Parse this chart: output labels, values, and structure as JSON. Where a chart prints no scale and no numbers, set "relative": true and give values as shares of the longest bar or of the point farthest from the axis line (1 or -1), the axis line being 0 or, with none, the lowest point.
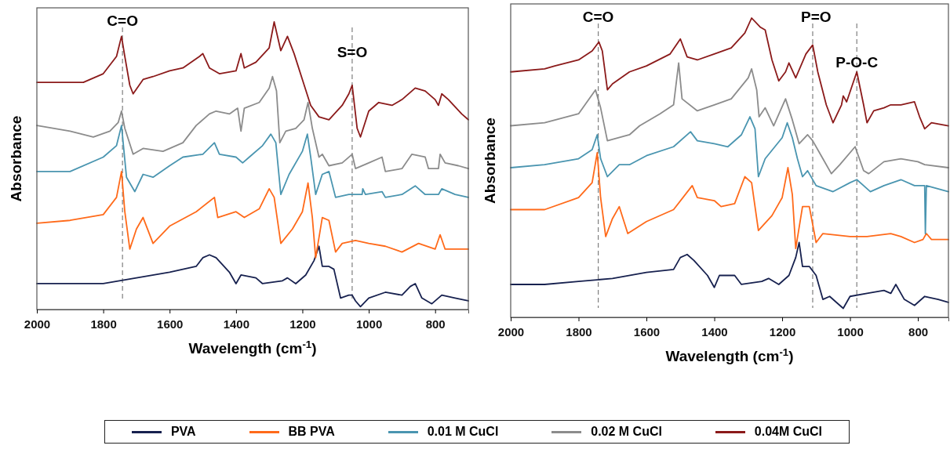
{
  "chart_data": [
    {
      "type": "line",
      "relative": true,
      "xlabel": "Wavelength (cm$^{-1}$)",
      "ylabel": "Absorbance",
      "xlim": [
        2000,
        700
      ],
      "xticks": [
        2000,
        1800,
        1600,
        1400,
        1200,
        1000,
        800
      ],
      "legend": "bottom",
      "line_style": "solid",
      "marker": "none",
      "grid": false,
      "ref_lines": [
        {
          "axis": "x",
          "value": 1742,
          "color": "#7f7f7f",
          "line_style": "dashed"
        },
        {
          "axis": "x",
          "value": 1050,
          "color": "#7f7f7f",
          "line_style": "dashed"
        }
      ],
      "annotations": [
        {
          "text": "C=O",
          "x": 1742,
          "y": 0.97
        },
        {
          "text": "S=O",
          "x": 1050,
          "y": 0.86
        }
      ],
      "series": [
        {
          "name": "PVA",
          "color": "#17214f",
          "x": [
            2000,
            1900,
            1800,
            1700,
            1600,
            1520,
            1500,
            1480,
            1460,
            1420,
            1400,
            1385,
            1340,
            1320,
            1260,
            1245,
            1220,
            1190,
            1165,
            1150,
            1140,
            1120,
            1105,
            1085,
            1060,
            1050,
            1040,
            1025,
            1000,
            950,
            900,
            875,
            860,
            840,
            810,
            780,
            740,
            700
          ],
          "values": [
            0.09,
            0.09,
            0.09,
            0.11,
            0.13,
            0.15,
            0.18,
            0.19,
            0.18,
            0.13,
            0.09,
            0.12,
            0.11,
            0.09,
            0.1,
            0.11,
            0.09,
            0.12,
            0.17,
            0.22,
            0.15,
            0.15,
            0.14,
            0.04,
            0.05,
            0.05,
            0.03,
            0.01,
            0.04,
            0.06,
            0.05,
            0.08,
            0.09,
            0.04,
            0.02,
            0.05,
            0.04,
            0.03
          ]
        },
        {
          "name": "BB PVA",
          "color": "#ff6a1a",
          "x": [
            2000,
            1900,
            1800,
            1760,
            1745,
            1735,
            1720,
            1700,
            1680,
            1650,
            1600,
            1520,
            1465,
            1455,
            1400,
            1375,
            1330,
            1300,
            1285,
            1265,
            1230,
            1200,
            1183,
            1170,
            1160,
            1140,
            1120,
            1100,
            1080,
            1040,
            1000,
            950,
            900,
            850,
            800,
            785,
            770,
            700
          ],
          "values": [
            0.3,
            0.31,
            0.33,
            0.39,
            0.48,
            0.34,
            0.21,
            0.28,
            0.32,
            0.23,
            0.29,
            0.34,
            0.39,
            0.32,
            0.34,
            0.32,
            0.35,
            0.42,
            0.39,
            0.23,
            0.28,
            0.34,
            0.44,
            0.32,
            0.18,
            0.32,
            0.31,
            0.2,
            0.23,
            0.24,
            0.23,
            0.22,
            0.2,
            0.23,
            0.21,
            0.26,
            0.21,
            0.21
          ]
        },
        {
          "name": "0.01 M CuCl",
          "color": "#4a95b0",
          "x": [
            2000,
            1900,
            1800,
            1760,
            1745,
            1730,
            1705,
            1680,
            1650,
            1600,
            1560,
            1500,
            1465,
            1450,
            1400,
            1380,
            1360,
            1320,
            1295,
            1280,
            1265,
            1240,
            1200,
            1185,
            1175,
            1160,
            1140,
            1120,
            1100,
            1060,
            1020,
            1018,
            1010,
            960,
            950,
            900,
            860,
            830,
            790,
            780,
            740,
            700
          ],
          "values": [
            0.48,
            0.48,
            0.53,
            0.57,
            0.64,
            0.46,
            0.41,
            0.47,
            0.46,
            0.5,
            0.53,
            0.54,
            0.58,
            0.54,
            0.53,
            0.51,
            0.53,
            0.57,
            0.61,
            0.58,
            0.4,
            0.47,
            0.55,
            0.61,
            0.53,
            0.4,
            0.47,
            0.48,
            0.39,
            0.4,
            0.4,
            0.42,
            0.4,
            0.41,
            0.39,
            0.4,
            0.43,
            0.4,
            0.4,
            0.42,
            0.4,
            0.39
          ]
        },
        {
          "name": "0.02 M CuCl",
          "color": "#8c8c8c",
          "x": [
            2000,
            1900,
            1830,
            1780,
            1755,
            1745,
            1735,
            1710,
            1680,
            1620,
            1560,
            1520,
            1480,
            1460,
            1420,
            1395,
            1385,
            1375,
            1330,
            1300,
            1290,
            1278,
            1268,
            1250,
            1220,
            1195,
            1183,
            1170,
            1150,
            1140,
            1120,
            1080,
            1050,
            1040,
            1000,
            960,
            950,
            900,
            870,
            830,
            820,
            790,
            785,
            770,
            730,
            700
          ],
          "values": [
            0.64,
            0.62,
            0.6,
            0.62,
            0.65,
            0.69,
            0.63,
            0.54,
            0.56,
            0.55,
            0.58,
            0.64,
            0.68,
            0.69,
            0.68,
            0.7,
            0.62,
            0.7,
            0.72,
            0.77,
            0.81,
            0.76,
            0.58,
            0.62,
            0.63,
            0.66,
            0.72,
            0.63,
            0.53,
            0.54,
            0.5,
            0.51,
            0.54,
            0.49,
            0.51,
            0.53,
            0.48,
            0.49,
            0.54,
            0.53,
            0.49,
            0.49,
            0.54,
            0.51,
            0.5,
            0.49
          ]
        },
        {
          "name": "0.04M CuCl",
          "color": "#8b1a1a",
          "x": [
            2000,
            1900,
            1860,
            1800,
            1760,
            1745,
            1735,
            1720,
            1710,
            1680,
            1650,
            1600,
            1560,
            1510,
            1500,
            1480,
            1450,
            1400,
            1385,
            1375,
            1340,
            1300,
            1285,
            1265,
            1245,
            1225,
            1200,
            1175,
            1150,
            1120,
            1080,
            1060,
            1050,
            1035,
            1025,
            1000,
            970,
            930,
            900,
            860,
            830,
            800,
            790,
            780,
            760,
            720,
            700
          ],
          "values": [
            0.79,
            0.79,
            0.79,
            0.82,
            0.88,
            0.95,
            0.88,
            0.78,
            0.75,
            0.8,
            0.81,
            0.83,
            0.84,
            0.88,
            0.89,
            0.84,
            0.82,
            0.83,
            0.89,
            0.84,
            0.86,
            0.91,
            1,
            0.9,
            0.95,
            0.89,
            0.8,
            0.71,
            0.67,
            0.66,
            0.71,
            0.75,
            0.78,
            0.63,
            0.6,
            0.69,
            0.72,
            0.71,
            0.73,
            0.77,
            0.76,
            0.73,
            0.71,
            0.75,
            0.73,
            0.68,
            0.66
          ]
        }
      ]
    },
    {
      "type": "line",
      "relative": true,
      "xlabel": "Wavelength (cm$^{-1}$)",
      "ylabel": "Absorbance",
      "xlim": [
        2000,
        710
      ],
      "xticks": [
        2000,
        1800,
        1600,
        1400,
        1200,
        1000,
        800
      ],
      "legend": false,
      "line_style": "solid",
      "marker": "none",
      "grid": false,
      "ref_lines": [
        {
          "axis": "x",
          "value": 1742,
          "color": "#7f7f7f",
          "line_style": "dashed"
        },
        {
          "axis": "x",
          "value": 1110,
          "color": "#7f7f7f",
          "line_style": "dashed"
        },
        {
          "axis": "x",
          "value": 980,
          "color": "#7f7f7f",
          "line_style": "dashed"
        }
      ],
      "annotations": [
        {
          "text": "C=O",
          "x": 1742,
          "y": 0.97
        },
        {
          "text": "P=O",
          "x": 1100,
          "y": 0.97
        },
        {
          "text": "P-O-C",
          "x": 980,
          "y": 0.82
        }
      ],
      "series": [
        {
          "color": "#17214f",
          "x": [
            2000,
            1900,
            1800,
            1700,
            1600,
            1520,
            1500,
            1480,
            1460,
            1420,
            1400,
            1385,
            1340,
            1320,
            1260,
            1240,
            1210,
            1180,
            1160,
            1150,
            1140,
            1120,
            1100,
            1080,
            1060,
            1030,
            1020,
            1000,
            950,
            900,
            880,
            865,
            840,
            810,
            780,
            740,
            710
          ],
          "values": [
            0.11,
            0.11,
            0.12,
            0.13,
            0.15,
            0.16,
            0.2,
            0.21,
            0.19,
            0.14,
            0.1,
            0.14,
            0.14,
            0.11,
            0.12,
            0.13,
            0.11,
            0.14,
            0.2,
            0.25,
            0.17,
            0.17,
            0.14,
            0.06,
            0.07,
            0.04,
            0.03,
            0.07,
            0.08,
            0.09,
            0.08,
            0.11,
            0.06,
            0.04,
            0.07,
            0.06,
            0.05
          ]
        },
        {
          "color": "#ff6a1a",
          "x": [
            2000,
            1900,
            1800,
            1760,
            1745,
            1735,
            1720,
            1700,
            1680,
            1655,
            1600,
            1520,
            1465,
            1450,
            1400,
            1380,
            1340,
            1310,
            1290,
            1270,
            1230,
            1200,
            1183,
            1170,
            1160,
            1140,
            1120,
            1100,
            1080,
            1000,
            950,
            880,
            850,
            810,
            785,
            775,
            760,
            710
          ],
          "values": [
            0.36,
            0.36,
            0.4,
            0.45,
            0.55,
            0.4,
            0.27,
            0.33,
            0.37,
            0.28,
            0.32,
            0.36,
            0.44,
            0.4,
            0.39,
            0.37,
            0.38,
            0.47,
            0.45,
            0.29,
            0.34,
            0.4,
            0.5,
            0.41,
            0.23,
            0.37,
            0.37,
            0.25,
            0.28,
            0.27,
            0.27,
            0.28,
            0.27,
            0.25,
            0.26,
            0.28,
            0.26,
            0.26
          ]
        },
        {
          "color": "#4a95b0",
          "x": [
            2000,
            1900,
            1800,
            1760,
            1745,
            1735,
            1715,
            1680,
            1650,
            1600,
            1520,
            1470,
            1450,
            1400,
            1360,
            1320,
            1295,
            1280,
            1270,
            1250,
            1200,
            1185,
            1170,
            1155,
            1140,
            1125,
            1100,
            1050,
            1000,
            980,
            960,
            940,
            900,
            850,
            810,
            780,
            778,
            775,
            710
          ],
          "values": [
            0.5,
            0.51,
            0.53,
            0.56,
            0.61,
            0.53,
            0.47,
            0.51,
            0.51,
            0.54,
            0.57,
            0.62,
            0.59,
            0.58,
            0.57,
            0.61,
            0.67,
            0.63,
            0.47,
            0.53,
            0.6,
            0.65,
            0.6,
            0.53,
            0.47,
            0.49,
            0.44,
            0.42,
            0.45,
            0.46,
            0.44,
            0.42,
            0.44,
            0.46,
            0.44,
            0.44,
            0.28,
            0.44,
            0.42
          ]
        },
        {
          "color": "#8c8c8c",
          "x": [
            2000,
            1900,
            1800,
            1750,
            1735,
            1715,
            1650,
            1620,
            1560,
            1520,
            1505,
            1495,
            1450,
            1400,
            1350,
            1300,
            1290,
            1275,
            1268,
            1250,
            1225,
            1190,
            1170,
            1150,
            1125,
            1110,
            1080,
            1055,
            1030,
            985,
            960,
            945,
            900,
            850,
            800,
            780,
            710
          ],
          "values": [
            0.64,
            0.65,
            0.68,
            0.76,
            0.7,
            0.59,
            0.61,
            0.64,
            0.68,
            0.71,
            0.85,
            0.73,
            0.69,
            0.71,
            0.73,
            0.8,
            0.83,
            0.76,
            0.67,
            0.7,
            0.64,
            0.73,
            0.66,
            0.58,
            0.61,
            0.59,
            0.53,
            0.48,
            0.51,
            0.57,
            0.49,
            0.48,
            0.52,
            0.53,
            0.52,
            0.51,
            0.5
          ]
        },
        {
          "color": "#8b1a1a",
          "x": [
            2000,
            1900,
            1870,
            1800,
            1760,
            1740,
            1730,
            1715,
            1700,
            1650,
            1600,
            1530,
            1500,
            1480,
            1450,
            1400,
            1350,
            1310,
            1290,
            1265,
            1250,
            1230,
            1210,
            1190,
            1180,
            1160,
            1130,
            1110,
            1095,
            1070,
            1050,
            1025,
            1020,
            1010,
            980,
            960,
            950,
            930,
            900,
            880,
            850,
            810,
            795,
            780,
            760,
            710
          ],
          "values": [
            0.82,
            0.83,
            0.84,
            0.86,
            0.89,
            0.92,
            0.89,
            0.76,
            0.78,
            0.82,
            0.84,
            0.88,
            0.93,
            0.87,
            0.86,
            0.88,
            0.9,
            0.95,
            1,
            0.97,
            0.96,
            0.86,
            0.79,
            0.82,
            0.85,
            0.8,
            0.88,
            0.91,
            0.82,
            0.71,
            0.65,
            0.71,
            0.74,
            0.72,
            0.82,
            0.71,
            0.65,
            0.69,
            0.7,
            0.71,
            0.71,
            0.72,
            0.67,
            0.63,
            0.65,
            0.64
          ]
        }
      ]
    }
  ]
}
